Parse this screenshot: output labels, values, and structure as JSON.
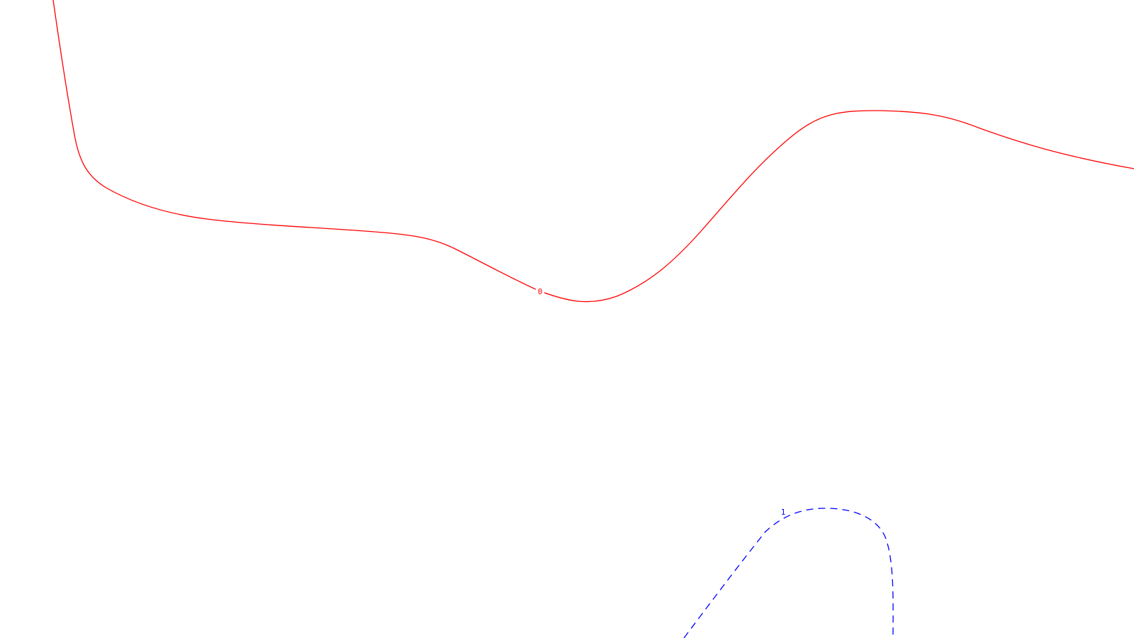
{
  "chart_data": {
    "type": "contour",
    "title": "",
    "xlabel": "",
    "ylabel": "",
    "grid": false,
    "legend": "none",
    "series": [
      {
        "name": "0",
        "level": "0",
        "color": "#ff0000",
        "style": "solid"
      },
      {
        "name": "1",
        "level": "1",
        "color": "#0000ff",
        "style": "dashed"
      }
    ]
  }
}
